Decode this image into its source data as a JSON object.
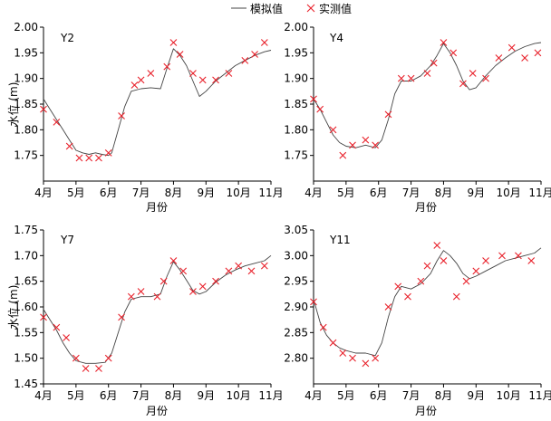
{
  "legend": {
    "simulated_label": "模拟值",
    "observed_label": "实测值",
    "placement": "top-center"
  },
  "colors": {
    "simulated_line": "#444444",
    "observed_marker": "#e8202a",
    "axis": "#000000"
  },
  "chart_data": [
    {
      "type": "line",
      "title": "Y2",
      "xlabel": "月份",
      "ylabel": "水位 (m)",
      "categories": [
        "4月",
        "5月",
        "6月",
        "7月",
        "8月",
        "9月",
        "10月",
        "11月"
      ],
      "ylim": [
        1.7,
        2.0
      ],
      "yticks": [
        "1.75",
        "1.80",
        "1.85",
        "1.90",
        "1.95",
        "2.00"
      ],
      "grid": false,
      "series": [
        {
          "name": "模拟值",
          "style": "line",
          "points": [
            [
              0.0,
              1.86
            ],
            [
              0.2,
              1.84
            ],
            [
              0.4,
              1.82
            ],
            [
              0.6,
              1.8
            ],
            [
              0.8,
              1.78
            ],
            [
              1.0,
              1.76
            ],
            [
              1.2,
              1.755
            ],
            [
              1.4,
              1.752
            ],
            [
              1.6,
              1.755
            ],
            [
              1.8,
              1.752
            ],
            [
              2.0,
              1.75
            ],
            [
              2.1,
              1.755
            ],
            [
              2.3,
              1.8
            ],
            [
              2.5,
              1.845
            ],
            [
              2.7,
              1.875
            ],
            [
              3.0,
              1.88
            ],
            [
              3.3,
              1.882
            ],
            [
              3.6,
              1.88
            ],
            [
              3.8,
              1.92
            ],
            [
              4.0,
              1.958
            ],
            [
              4.2,
              1.945
            ],
            [
              4.4,
              1.925
            ],
            [
              4.6,
              1.895
            ],
            [
              4.8,
              1.865
            ],
            [
              5.0,
              1.875
            ],
            [
              5.3,
              1.895
            ],
            [
              5.6,
              1.91
            ],
            [
              5.9,
              1.925
            ],
            [
              6.2,
              1.935
            ],
            [
              6.5,
              1.945
            ],
            [
              6.8,
              1.952
            ],
            [
              7.0,
              1.955
            ]
          ]
        },
        {
          "name": "实测值",
          "style": "marker-x",
          "points": [
            [
              0.0,
              1.84
            ],
            [
              0.4,
              1.815
            ],
            [
              0.8,
              1.768
            ],
            [
              1.1,
              1.745
            ],
            [
              1.4,
              1.745
            ],
            [
              1.7,
              1.745
            ],
            [
              2.0,
              1.755
            ],
            [
              2.4,
              1.827
            ],
            [
              2.8,
              1.887
            ],
            [
              3.0,
              1.897
            ],
            [
              3.3,
              1.91
            ],
            [
              3.8,
              1.923
            ],
            [
              4.0,
              1.97
            ],
            [
              4.2,
              1.947
            ],
            [
              4.6,
              1.91
            ],
            [
              4.9,
              1.897
            ],
            [
              5.3,
              1.897
            ],
            [
              5.7,
              1.91
            ],
            [
              6.2,
              1.935
            ],
            [
              6.5,
              1.947
            ],
            [
              6.8,
              1.97
            ]
          ]
        }
      ]
    },
    {
      "type": "line",
      "title": "Y4",
      "xlabel": "",
      "ylabel": "",
      "categories": [
        "4月",
        "5月",
        "6月",
        "7月",
        "8月",
        "9月",
        "10月",
        "11月"
      ],
      "ylim": [
        1.7,
        2.0
      ],
      "yticks": [
        "1.75",
        "1.80",
        "1.85",
        "1.90",
        "1.95",
        "2.00"
      ],
      "grid": false,
      "series": [
        {
          "name": "模拟值",
          "style": "line",
          "points": [
            [
              0.0,
              1.86
            ],
            [
              0.2,
              1.84
            ],
            [
              0.4,
              1.815
            ],
            [
              0.6,
              1.79
            ],
            [
              0.8,
              1.775
            ],
            [
              1.0,
              1.768
            ],
            [
              1.3,
              1.765
            ],
            [
              1.6,
              1.77
            ],
            [
              1.9,
              1.765
            ],
            [
              2.1,
              1.78
            ],
            [
              2.3,
              1.82
            ],
            [
              2.5,
              1.87
            ],
            [
              2.7,
              1.895
            ],
            [
              3.0,
              1.895
            ],
            [
              3.3,
              1.905
            ],
            [
              3.6,
              1.925
            ],
            [
              3.8,
              1.945
            ],
            [
              4.0,
              1.968
            ],
            [
              4.2,
              1.95
            ],
            [
              4.4,
              1.925
            ],
            [
              4.6,
              1.895
            ],
            [
              4.8,
              1.878
            ],
            [
              5.0,
              1.882
            ],
            [
              5.3,
              1.905
            ],
            [
              5.6,
              1.925
            ],
            [
              5.9,
              1.94
            ],
            [
              6.2,
              1.953
            ],
            [
              6.5,
              1.962
            ],
            [
              6.8,
              1.968
            ],
            [
              7.0,
              1.97
            ]
          ]
        },
        {
          "name": "实测值",
          "style": "marker-x",
          "points": [
            [
              0.0,
              1.86
            ],
            [
              0.2,
              1.84
            ],
            [
              0.6,
              1.8
            ],
            [
              0.9,
              1.75
            ],
            [
              1.2,
              1.77
            ],
            [
              1.6,
              1.78
            ],
            [
              1.9,
              1.77
            ],
            [
              2.3,
              1.83
            ],
            [
              2.7,
              1.9
            ],
            [
              3.0,
              1.9
            ],
            [
              3.5,
              1.91
            ],
            [
              3.7,
              1.93
            ],
            [
              4.0,
              1.97
            ],
            [
              4.3,
              1.95
            ],
            [
              4.6,
              1.89
            ],
            [
              4.9,
              1.91
            ],
            [
              5.3,
              1.9
            ],
            [
              5.7,
              1.94
            ],
            [
              6.1,
              1.96
            ],
            [
              6.5,
              1.94
            ],
            [
              6.9,
              1.95
            ]
          ]
        }
      ]
    },
    {
      "type": "line",
      "title": "Y7",
      "xlabel": "",
      "ylabel": "水位 (m)",
      "categories": [
        "4月",
        "5月",
        "6月",
        "7月",
        "8月",
        "9月",
        "10月",
        "11月"
      ],
      "ylim": [
        1.45,
        1.75
      ],
      "yticks": [
        "1.45",
        "1.50",
        "1.55",
        "1.60",
        "1.65",
        "1.70",
        "1.75"
      ],
      "grid": false,
      "series": [
        {
          "name": "模拟值",
          "style": "line",
          "points": [
            [
              0.0,
              1.595
            ],
            [
              0.2,
              1.575
            ],
            [
              0.4,
              1.555
            ],
            [
              0.6,
              1.53
            ],
            [
              0.8,
              1.51
            ],
            [
              1.0,
              1.495
            ],
            [
              1.3,
              1.49
            ],
            [
              1.6,
              1.49
            ],
            [
              1.9,
              1.492
            ],
            [
              2.1,
              1.51
            ],
            [
              2.3,
              1.55
            ],
            [
              2.5,
              1.59
            ],
            [
              2.7,
              1.615
            ],
            [
              3.0,
              1.62
            ],
            [
              3.3,
              1.62
            ],
            [
              3.6,
              1.625
            ],
            [
              3.8,
              1.66
            ],
            [
              4.0,
              1.688
            ],
            [
              4.2,
              1.672
            ],
            [
              4.4,
              1.652
            ],
            [
              4.6,
              1.632
            ],
            [
              4.8,
              1.625
            ],
            [
              5.0,
              1.63
            ],
            [
              5.3,
              1.648
            ],
            [
              5.6,
              1.662
            ],
            [
              5.9,
              1.672
            ],
            [
              6.2,
              1.68
            ],
            [
              6.5,
              1.685
            ],
            [
              6.8,
              1.69
            ],
            [
              7.0,
              1.7
            ]
          ]
        },
        {
          "name": "实测值",
          "style": "marker-x",
          "points": [
            [
              0.0,
              1.58
            ],
            [
              0.4,
              1.56
            ],
            [
              0.7,
              1.54
            ],
            [
              1.0,
              1.5
            ],
            [
              1.3,
              1.48
            ],
            [
              1.7,
              1.48
            ],
            [
              2.0,
              1.5
            ],
            [
              2.4,
              1.58
            ],
            [
              2.7,
              1.62
            ],
            [
              3.0,
              1.63
            ],
            [
              3.5,
              1.62
            ],
            [
              3.7,
              1.65
            ],
            [
              4.0,
              1.69
            ],
            [
              4.3,
              1.67
            ],
            [
              4.6,
              1.63
            ],
            [
              4.9,
              1.64
            ],
            [
              5.3,
              1.65
            ],
            [
              5.7,
              1.67
            ],
            [
              6.0,
              1.68
            ],
            [
              6.4,
              1.67
            ],
            [
              6.8,
              1.68
            ]
          ]
        }
      ]
    },
    {
      "type": "line",
      "title": "Y11",
      "xlabel": "",
      "ylabel": "",
      "categories": [
        "4月",
        "5月",
        "6月",
        "7月",
        "8月",
        "9月",
        "10月",
        "11月"
      ],
      "ylim": [
        2.75,
        3.05
      ],
      "yticks": [
        "2.80",
        "2.85",
        "2.90",
        "2.95",
        "3.00",
        "3.05"
      ],
      "grid": false,
      "series": [
        {
          "name": "模拟值",
          "style": "line",
          "points": [
            [
              0.0,
              2.915
            ],
            [
              0.2,
              2.87
            ],
            [
              0.4,
              2.845
            ],
            [
              0.6,
              2.83
            ],
            [
              0.8,
              2.82
            ],
            [
              1.0,
              2.815
            ],
            [
              1.3,
              2.81
            ],
            [
              1.6,
              2.81
            ],
            [
              1.9,
              2.805
            ],
            [
              2.1,
              2.83
            ],
            [
              2.3,
              2.88
            ],
            [
              2.5,
              2.92
            ],
            [
              2.7,
              2.94
            ],
            [
              3.0,
              2.935
            ],
            [
              3.3,
              2.945
            ],
            [
              3.6,
              2.965
            ],
            [
              3.8,
              2.99
            ],
            [
              4.0,
              3.01
            ],
            [
              4.2,
              3.0
            ],
            [
              4.4,
              2.985
            ],
            [
              4.6,
              2.965
            ],
            [
              4.8,
              2.955
            ],
            [
              5.0,
              2.96
            ],
            [
              5.3,
              2.97
            ],
            [
              5.6,
              2.98
            ],
            [
              5.9,
              2.99
            ],
            [
              6.2,
              2.995
            ],
            [
              6.5,
              3.0
            ],
            [
              6.8,
              3.005
            ],
            [
              7.0,
              3.015
            ]
          ]
        },
        {
          "name": "实测值",
          "style": "marker-x",
          "points": [
            [
              0.0,
              2.91
            ],
            [
              0.3,
              2.86
            ],
            [
              0.6,
              2.83
            ],
            [
              0.9,
              2.81
            ],
            [
              1.2,
              2.8
            ],
            [
              1.6,
              2.79
            ],
            [
              1.9,
              2.8
            ],
            [
              2.3,
              2.9
            ],
            [
              2.6,
              2.94
            ],
            [
              2.9,
              2.92
            ],
            [
              3.3,
              2.95
            ],
            [
              3.5,
              2.98
            ],
            [
              3.8,
              3.02
            ],
            [
              4.0,
              2.99
            ],
            [
              4.4,
              2.92
            ],
            [
              4.7,
              2.95
            ],
            [
              5.0,
              2.97
            ],
            [
              5.3,
              2.99
            ],
            [
              5.8,
              3.0
            ],
            [
              6.3,
              3.0
            ],
            [
              6.7,
              2.99
            ]
          ]
        }
      ]
    }
  ]
}
